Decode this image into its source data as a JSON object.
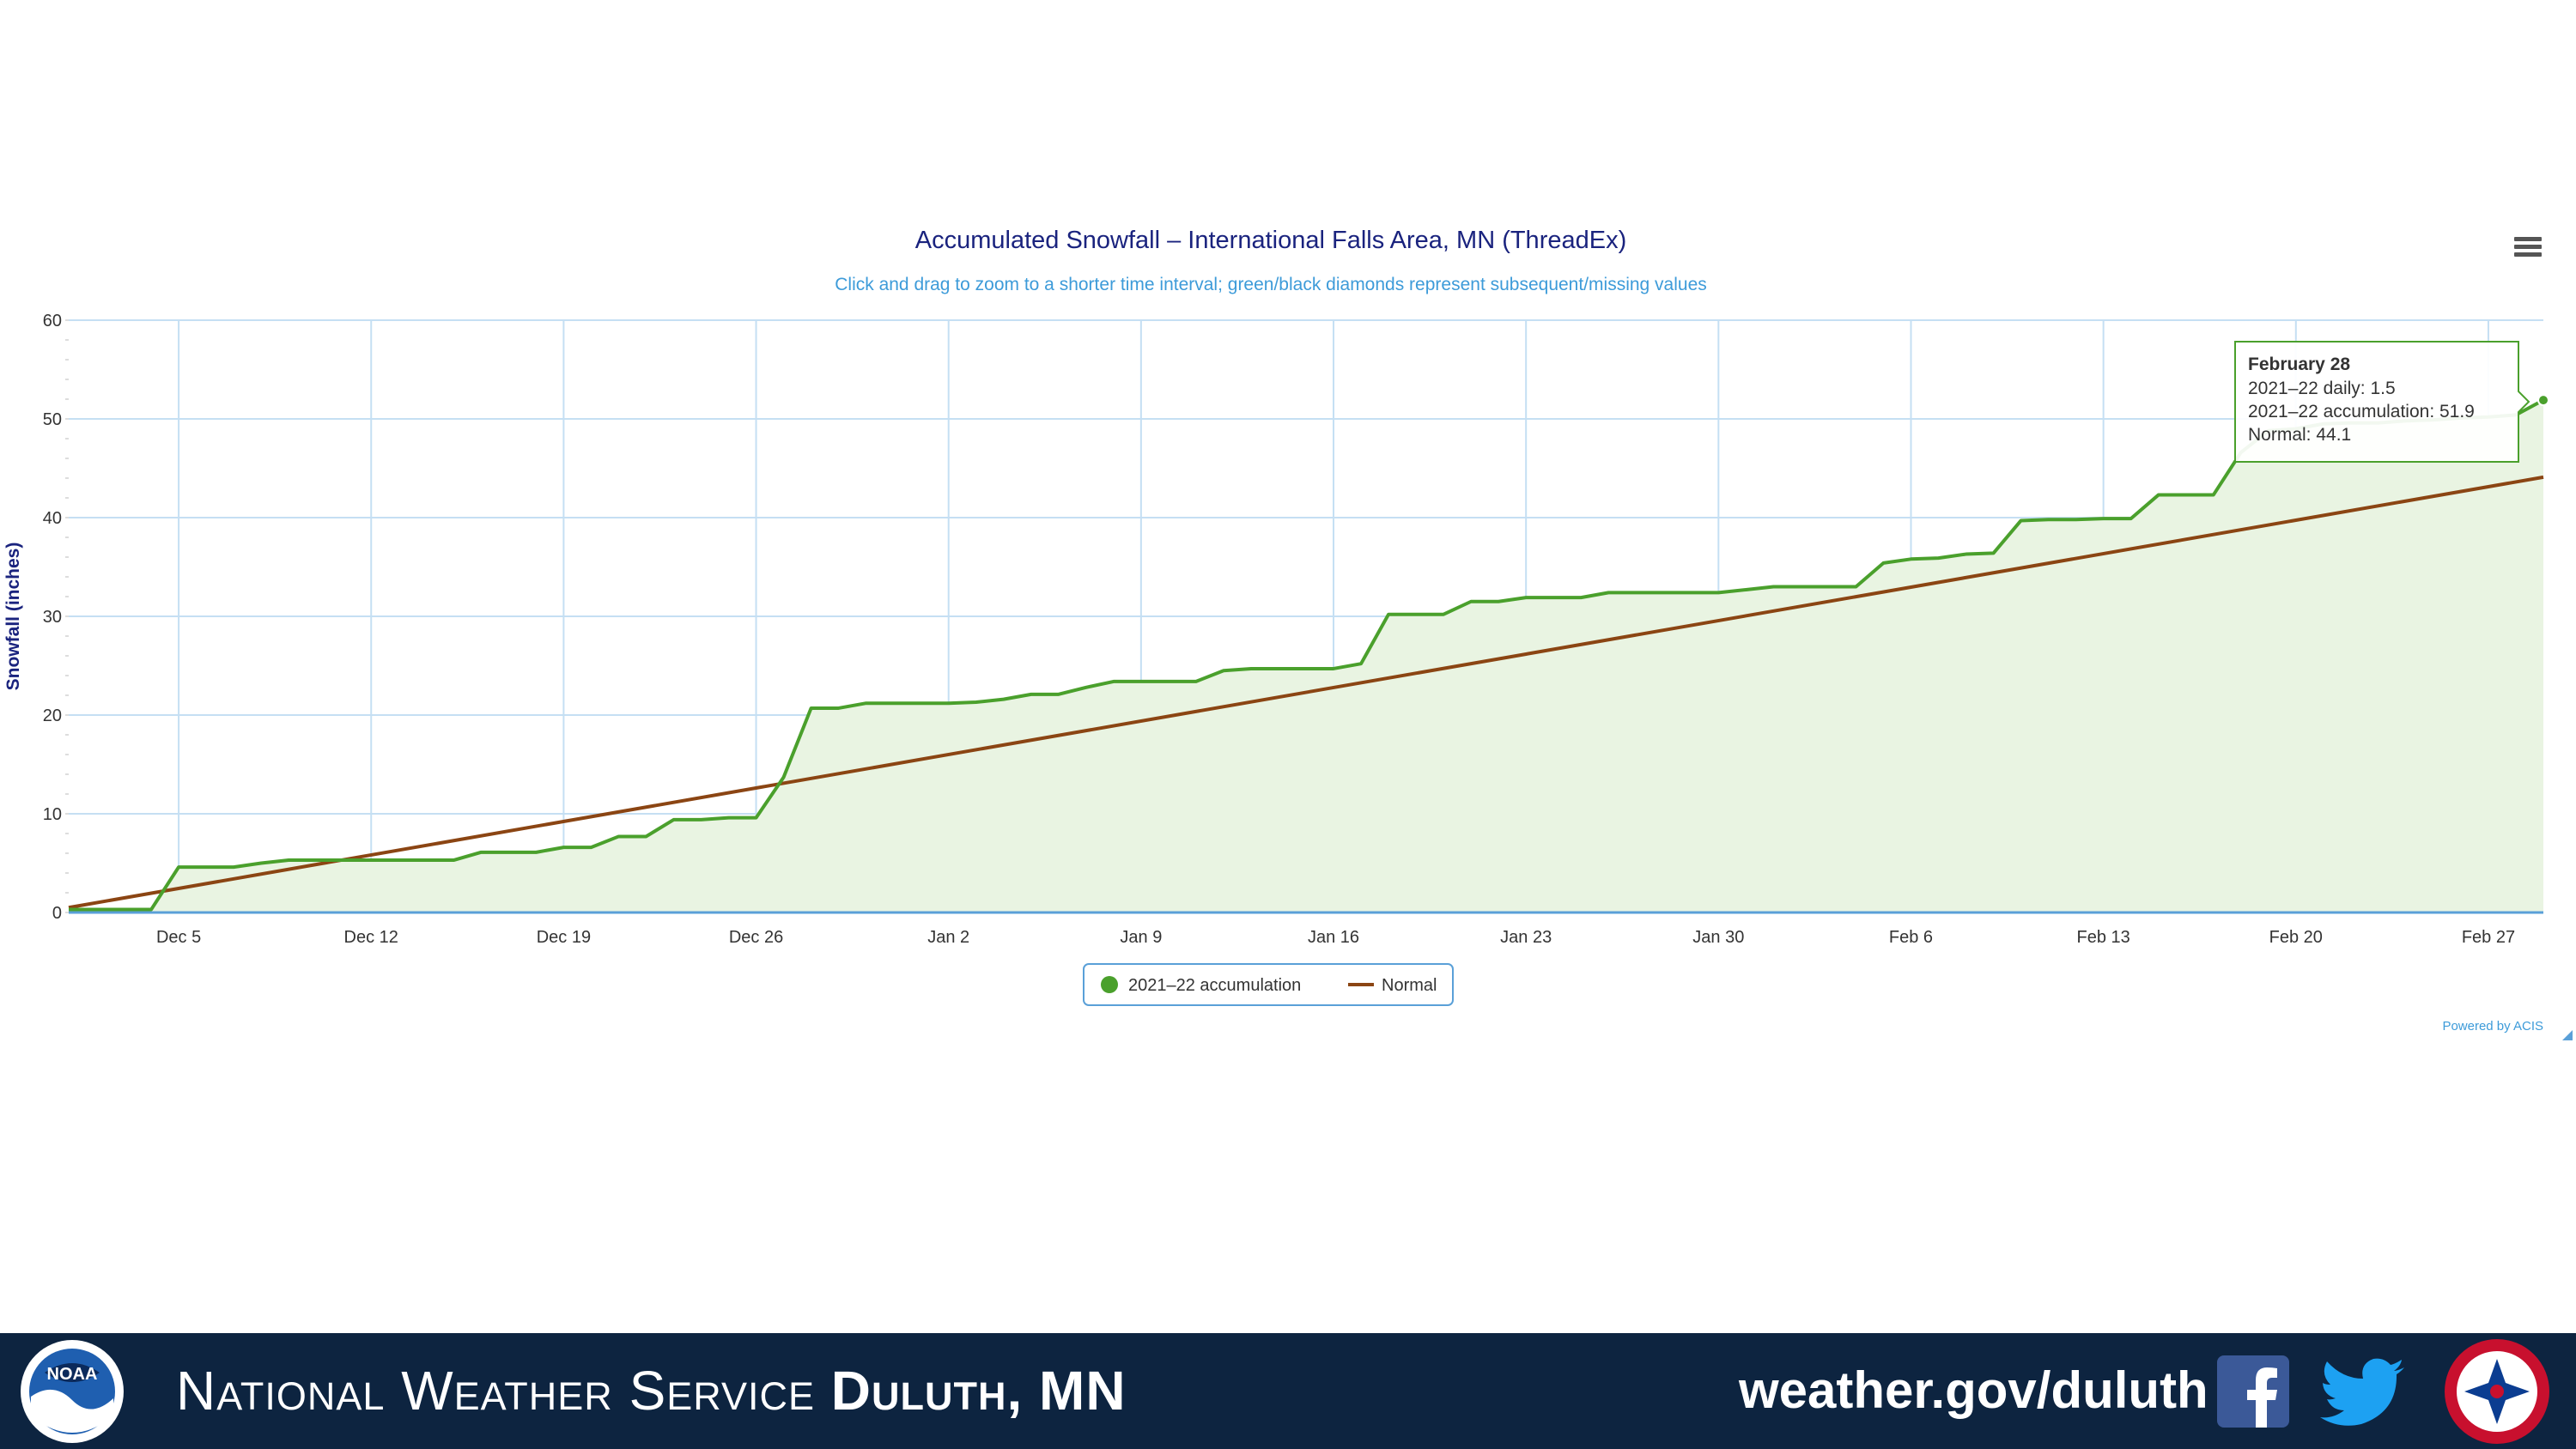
{
  "chart_data": {
    "type": "area",
    "title": "Accumulated Snowfall – International Falls Area, MN (ThreadEx)",
    "subtitle": "Click and drag to zoom to a shorter time interval; green/black diamonds represent subsequent/missing values",
    "ylabel": "Snowfall (inches)",
    "xlabel": "",
    "ylim": [
      0,
      60
    ],
    "yticks": [
      0,
      10,
      20,
      30,
      40,
      50,
      60
    ],
    "xtick_labels": [
      "Dec 5",
      "Dec 12",
      "Dec 19",
      "Dec 26",
      "Jan 2",
      "Jan 9",
      "Jan 16",
      "Jan 23",
      "Jan 30",
      "Feb 6",
      "Feb 13",
      "Feb 20",
      "Feb 27"
    ],
    "x_start": "Dec 1",
    "x_end": "Feb 28",
    "grid": true,
    "legend_position": "bottom-center",
    "series": [
      {
        "name": "2021–22 accumulation",
        "color": "#4aa02c",
        "fill": "#e9f4e2",
        "values": [
          0.3,
          0.3,
          0.3,
          0.3,
          4.6,
          4.6,
          4.6,
          5.0,
          5.3,
          5.3,
          5.3,
          5.3,
          5.3,
          5.3,
          5.3,
          6.1,
          6.1,
          6.1,
          6.6,
          6.6,
          7.7,
          7.7,
          9.4,
          9.4,
          9.6,
          9.6,
          13.7,
          20.7,
          20.7,
          21.2,
          21.2,
          21.2,
          21.2,
          21.3,
          21.6,
          22.1,
          22.1,
          22.8,
          23.4,
          23.4,
          23.4,
          23.4,
          24.5,
          24.7,
          24.7,
          24.7,
          24.7,
          25.2,
          30.2,
          30.2,
          30.2,
          31.5,
          31.5,
          31.9,
          31.9,
          31.9,
          32.4,
          32.4,
          32.4,
          32.4,
          32.4,
          32.7,
          33.0,
          33.0,
          33.0,
          33.0,
          35.4,
          35.8,
          35.9,
          36.3,
          36.4,
          39.7,
          39.8,
          39.8,
          39.9,
          39.9,
          42.3,
          42.3,
          42.3,
          46.6,
          48.8,
          49.0,
          49.5,
          49.6,
          49.6,
          49.8,
          49.9,
          50.1,
          50.2,
          50.4,
          51.9
        ]
      },
      {
        "name": "Normal",
        "color": "#8b4513",
        "normal_start": 0.5,
        "normal_end": 44.1
      }
    ],
    "tooltip": {
      "title": "February 28",
      "lines": [
        "2021–22 daily: 1.5",
        "2021–22 accumulation: 51.9",
        "Normal: 44.1"
      ]
    },
    "credit": "Powered by ACIS"
  },
  "footer": {
    "org_prefix": "National Weather Service",
    "org_office": "Duluth, MN",
    "url": "weather.gov/duluth",
    "noaa_logo_text": "NOAA",
    "colors": {
      "background": "#0d2440",
      "text": "#ffffff"
    }
  }
}
